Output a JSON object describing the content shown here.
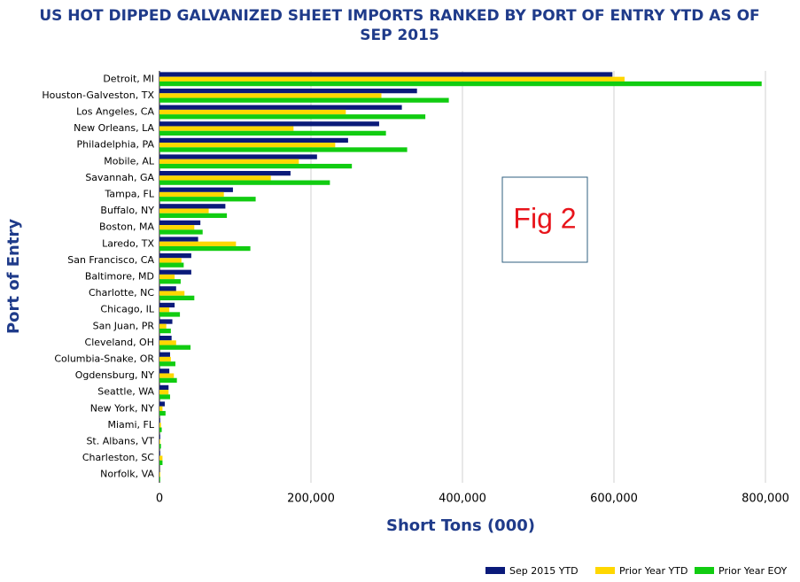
{
  "chart_data": {
    "type": "hbar",
    "title": [
      "US HOT DIPPED GALVANIZED SHEET IMPORTS RANKED BY PORT OF ENTRY YTD AS OF",
      "SEP 2015"
    ],
    "x_label": "Short Tons (000)",
    "y_label": "Port of Entry",
    "annotation": "Fig 2",
    "categories": [
      "Detroit, MI",
      "Houston-Galveston, TX",
      "Los Angeles, CA",
      "New Orleans, LA",
      "Philadelphia, PA",
      "Mobile, AL",
      "Savannah, GA",
      "Tampa, FL",
      "Buffalo, NY",
      "Boston, MA",
      "Laredo, TX",
      "San Francisco, CA",
      "Baltimore, MD",
      "Charlotte, NC",
      "Chicago, IL",
      "San Juan, PR",
      "Cleveland, OH",
      "Columbia-Snake, OR",
      "Ogdensburg, NY",
      "Seattle, WA",
      "New York, NY",
      "Miami, FL",
      "St. Albans, VT",
      "Charleston, SC",
      "Norfolk, VA"
    ],
    "series": [
      {
        "name": "Sep 2015 YTD",
        "color": "#0a1a7a",
        "values": [
          598000,
          340000,
          320000,
          290000,
          249000,
          208000,
          173000,
          97000,
          87000,
          54000,
          51000,
          42000,
          42000,
          22000,
          20000,
          17000,
          16000,
          14000,
          13000,
          12000,
          7000,
          1000,
          1000,
          1000,
          0
        ]
      },
      {
        "name": "Prior Year YTD",
        "color": "#ffd700",
        "values": [
          614000,
          293000,
          246000,
          177000,
          232000,
          184000,
          147000,
          85000,
          65000,
          46000,
          101000,
          29000,
          20000,
          33000,
          13000,
          9000,
          22000,
          15000,
          19000,
          12000,
          4000,
          2000,
          1000,
          4000,
          1000
        ]
      },
      {
        "name": "Prior Year EOY",
        "color": "#11cc11",
        "values": [
          795000,
          382000,
          351000,
          299000,
          327000,
          254000,
          225000,
          127000,
          89000,
          57000,
          120000,
          32000,
          28000,
          46000,
          27000,
          15000,
          41000,
          21000,
          23000,
          14000,
          8000,
          3000,
          2000,
          4000,
          1000
        ]
      }
    ],
    "xlim": [
      0,
      800000
    ],
    "xticks": [
      0,
      {
        "value": 200000,
        "label": "200,000"
      },
      {
        "value": 400000,
        "label": "400,000"
      },
      {
        "value": 600000,
        "label": "600,000"
      },
      {
        "value": 800000,
        "label": "800,000"
      }
    ],
    "grid": true,
    "legend": "bottom-right"
  }
}
